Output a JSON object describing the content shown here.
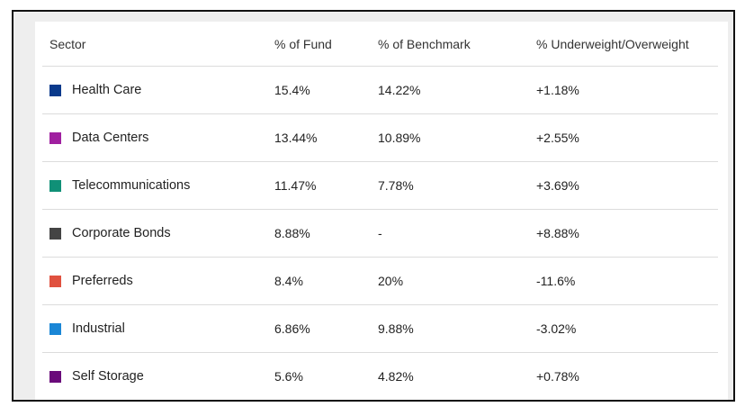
{
  "table": {
    "headers": {
      "sector": "Sector",
      "fund": "% of Fund",
      "benchmark": "% of Benchmark",
      "diff": "% Underweight/Overweight"
    },
    "rows": [
      {
        "sector": "Health Care",
        "color": "#0a3a8c",
        "fund": "15.4%",
        "benchmark": "14.22%",
        "diff": "+1.18%"
      },
      {
        "sector": "Data Centers",
        "color": "#a020a0",
        "fund": "13.44%",
        "benchmark": "10.89%",
        "diff": "+2.55%"
      },
      {
        "sector": "Telecommunications",
        "color": "#109077",
        "fund": "11.47%",
        "benchmark": "7.78%",
        "diff": "+3.69%"
      },
      {
        "sector": "Corporate Bonds",
        "color": "#444444",
        "fund": "8.88%",
        "benchmark": "-",
        "diff": "+8.88%"
      },
      {
        "sector": "Preferreds",
        "color": "#e0513f",
        "fund": "8.4%",
        "benchmark": "20%",
        "diff": "-11.6%"
      },
      {
        "sector": "Industrial",
        "color": "#1a86d6",
        "fund": "6.86%",
        "benchmark": "9.88%",
        "diff": "-3.02%"
      },
      {
        "sector": "Self Storage",
        "color": "#6a0a7a",
        "fund": "5.6%",
        "benchmark": "4.82%",
        "diff": "+0.78%"
      }
    ]
  }
}
